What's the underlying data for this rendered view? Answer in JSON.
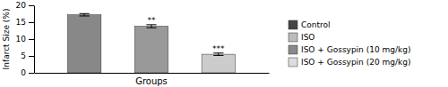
{
  "chart_data": {
    "type": "bar",
    "categories": [
      null,
      null,
      null
    ],
    "values": [
      17.2,
      13.8,
      5.5
    ],
    "errors": [
      0.35,
      0.45,
      0.35
    ],
    "colors": [
      "#888888",
      "#999999",
      "#cccccc"
    ],
    "xlabel": "Groups",
    "ylabel": "Infarct Size (%)",
    "ylim": [
      0,
      20
    ],
    "yticks": [
      0,
      5,
      10,
      15,
      20
    ],
    "grid": false,
    "tick_labels": "y",
    "annotations": [
      {
        "text": "**",
        "index": 1
      },
      {
        "text": "***",
        "index": 2
      }
    ],
    "legend_entries": [
      {
        "label": "Control",
        "color": "#444444"
      },
      {
        "label": "ISO",
        "color": "#bbbbbb"
      },
      {
        "label": "ISO + Gossypin (10 mg/kg)",
        "color": "#888888"
      },
      {
        "label": "ISO + Gossypin (20 mg/kg)",
        "color": "#dddddd"
      }
    ]
  }
}
